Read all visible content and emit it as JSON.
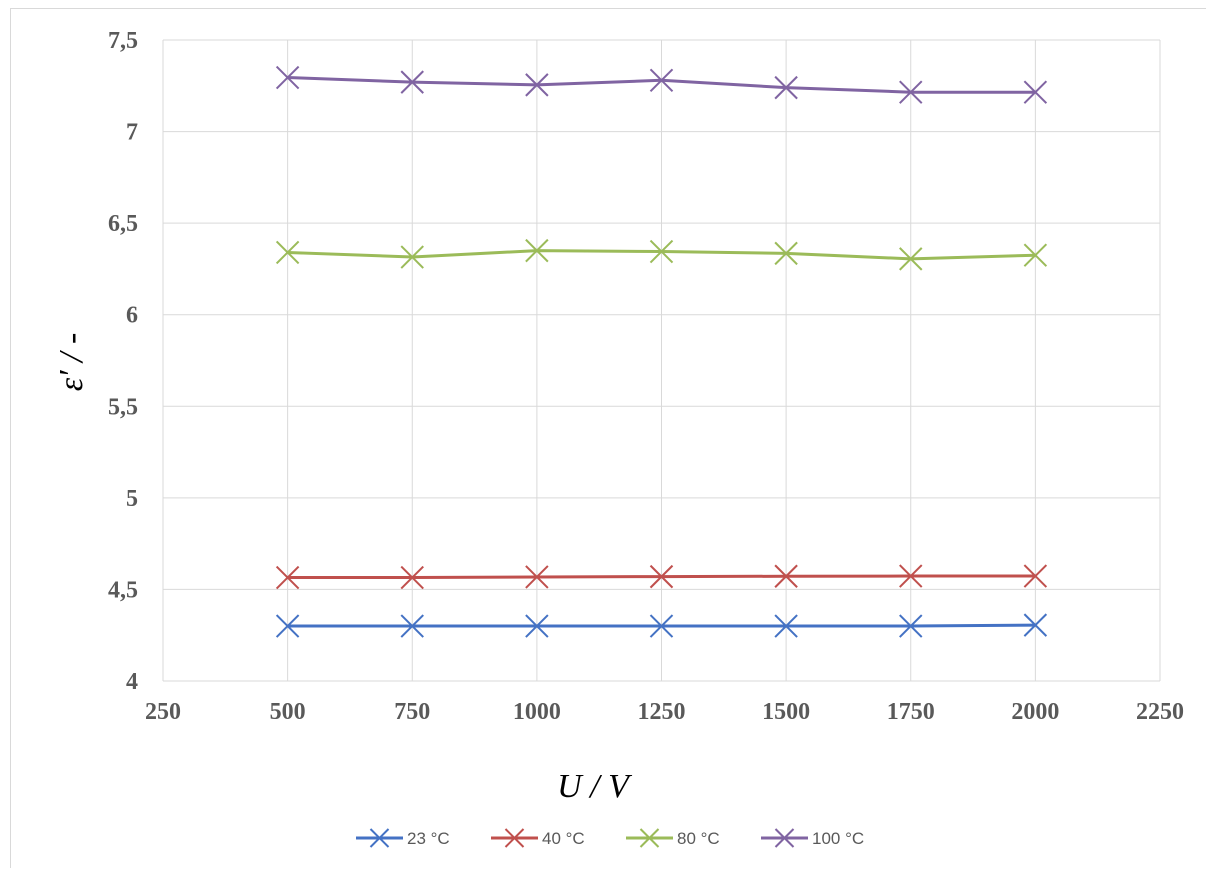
{
  "chart_data": {
    "type": "line",
    "x": [
      500,
      750,
      1000,
      1250,
      1500,
      1750,
      2000
    ],
    "xlim": [
      250,
      2250
    ],
    "ylim": [
      4,
      7.5
    ],
    "x_ticks": [
      "250",
      "500",
      "750",
      "1000",
      "1250",
      "1500",
      "1750",
      "2000",
      "2250"
    ],
    "y_ticks": [
      "4",
      "4,5",
      "5",
      "5,5",
      "6",
      "6,5",
      "7",
      "7,5"
    ],
    "xlabel": "U / V",
    "ylabel": "ε′ / -",
    "grid": true,
    "legend_position": "bottom",
    "marker": "x",
    "series": [
      {
        "name": "23 °C",
        "color": "#4472C4",
        "values": [
          4.3,
          4.3,
          4.3,
          4.3,
          4.3,
          4.3,
          4.305
        ]
      },
      {
        "name": "40 °C",
        "color": "#C0504D",
        "values": [
          4.565,
          4.565,
          4.568,
          4.57,
          4.572,
          4.573,
          4.573
        ]
      },
      {
        "name": "80 °C",
        "color": "#9BBB59",
        "values": [
          6.34,
          6.315,
          6.35,
          6.345,
          6.335,
          6.305,
          6.325
        ]
      },
      {
        "name": "100 °C",
        "color": "#8064A2",
        "values": [
          7.295,
          7.27,
          7.255,
          7.28,
          7.24,
          7.215,
          7.215
        ]
      }
    ]
  }
}
